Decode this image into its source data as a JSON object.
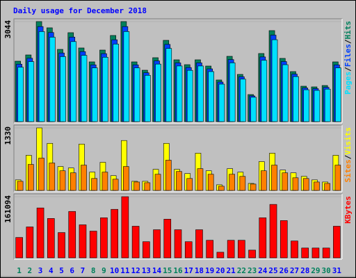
{
  "chart_data": {
    "type": "bar",
    "title": "Daily usage for December 2018",
    "categories": [
      "1",
      "2",
      "3",
      "4",
      "5",
      "6",
      "7",
      "8",
      "9",
      "10",
      "11",
      "12",
      "13",
      "14",
      "15",
      "16",
      "17",
      "18",
      "19",
      "20",
      "21",
      "22",
      "23",
      "24",
      "25",
      "26",
      "27",
      "28",
      "29",
      "30",
      "31"
    ],
    "category_colors": [
      "#00805c",
      "#00805c",
      "#0000ff",
      "#0000ff",
      "#0000ff",
      "#0000ff",
      "#0000ff",
      "#00805c",
      "#00805c",
      "#0000ff",
      "#0000ff",
      "#0000ff",
      "#0000ff",
      "#0000ff",
      "#00805c",
      "#00805c",
      "#0000ff",
      "#0000ff",
      "#0000ff",
      "#0000ff",
      "#0000ff",
      "#00805c",
      "#00805c",
      "#0000ff",
      "#0000ff",
      "#0000ff",
      "#0000ff",
      "#0000ff",
      "#00805c",
      "#00805c",
      "#0000ff"
    ],
    "legend_separator": "/",
    "panels": [
      {
        "ylim": [
          0,
          3044
        ],
        "yticks": [
          3044
        ],
        "series": [
          {
            "name": "Hits",
            "color": "#00805c",
            "values": [
              1839,
              2029,
              3044,
              2854,
              2198,
              2706,
              2241,
              1818,
              2177,
              2621,
              3044,
              1818,
              1564,
              1945,
              2473,
              1881,
              1733,
              1881,
              1691,
              1268,
              1987,
              1437,
              824,
              2072,
              2769,
              1924,
              1522,
              1078,
              1057,
              1099,
              1818
            ]
          },
          {
            "name": "Files",
            "color": "#0040ff",
            "values": [
              1747,
              1928,
              2892,
              2711,
              2088,
              2571,
              2129,
              1727,
              2068,
              2490,
              2892,
              1727,
              1486,
              1848,
              2349,
              1787,
              1646,
              1787,
              1606,
              1205,
              1888,
              1365,
              783,
              1968,
              2631,
              1828,
              1446,
              1024,
              1004,
              1044,
              1727
            ]
          },
          {
            "name": "Pages",
            "color": "#00e0ff",
            "values": [
              1655,
              1826,
              2740,
              2569,
              1978,
              2435,
              2017,
              1636,
              1959,
              2359,
              2740,
              1636,
              1408,
              1751,
              2226,
              1693,
              1560,
              1693,
              1522,
              1141,
              1788,
              1293,
              742,
              1865,
              2492,
              1732,
              1370,
              970,
              951,
              989,
              1636
            ]
          }
        ]
      },
      {
        "ylim": [
          0,
          1330
        ],
        "yticks": [
          1330
        ],
        "series": [
          {
            "name": "Visits",
            "color": "#ffff00",
            "values": [
              224,
              747,
              1330,
              1001,
              508,
              478,
              986,
              389,
              598,
              314,
              1061,
              194,
              194,
              448,
              1001,
              448,
              359,
              792,
              418,
              120,
              463,
              389,
              149,
              613,
              792,
              433,
              374,
              299,
              224,
              179,
              747
            ]
          },
          {
            "name": "Sites",
            "color": "#ff8000",
            "values": [
              194,
              553,
              687,
              583,
              418,
              374,
              538,
              254,
              389,
              239,
              508,
              179,
              164,
              344,
              643,
              403,
              254,
              463,
              344,
              90,
              344,
              299,
              135,
              418,
              538,
              374,
              269,
              254,
              179,
              149,
              538
            ]
          }
        ]
      },
      {
        "ylim": [
          0,
          161094
        ],
        "yticks": [
          161094
        ],
        "series": [
          {
            "name": "KBytes",
            "color": "#ff0000",
            "values": [
              53699,
              81475,
              131471,
              103695,
              66661,
              122212,
              87029,
              70364,
              105546,
              127767,
              161094,
              83326,
              42589,
              74067,
              101843,
              74067,
              42589,
              74067,
              46292,
              14813,
              46292,
              46292,
              20368,
              105546,
              140728,
              98138,
              44440,
              25923,
              25923,
              25923,
              83326
            ]
          }
        ]
      }
    ]
  }
}
